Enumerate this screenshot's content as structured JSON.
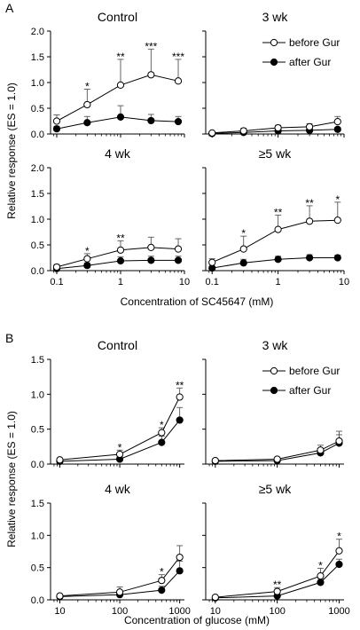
{
  "chart_data": [
    {
      "panel": "A",
      "type": "line",
      "ylabel": "Relative response (ES = 1.0)",
      "xlabel": "Concentration of SC45647 (mM)",
      "xscale": "log",
      "ylim": [
        0,
        2.0
      ],
      "yticks": [
        "0.0",
        "0.5",
        "1.0",
        "1.5",
        "2.0"
      ],
      "xticks": [
        "0.1",
        "1",
        "10"
      ],
      "legend": [
        "before Gur",
        "after Gur"
      ],
      "subplots": [
        {
          "title": "Control",
          "series": [
            {
              "name": "before Gur",
              "x": [
                0.1,
                0.3,
                1,
                3,
                8
              ],
              "y": [
                0.25,
                0.57,
                0.95,
                1.15,
                1.03
              ],
              "err": [
                0.12,
                0.3,
                0.5,
                0.5,
                0.42
              ]
            },
            {
              "name": "after Gur",
              "x": [
                0.1,
                0.3,
                1,
                3,
                8
              ],
              "y": [
                0.1,
                0.22,
                0.33,
                0.26,
                0.24
              ],
              "err": [
                0.05,
                0.12,
                0.22,
                0.12,
                0.1
              ]
            }
          ],
          "annotations": [
            {
              "x": 0.3,
              "text": "*"
            },
            {
              "x": 1,
              "text": "**"
            },
            {
              "x": 3,
              "text": "***"
            },
            {
              "x": 8,
              "text": "***"
            }
          ]
        },
        {
          "title": "3 wk",
          "series": [
            {
              "name": "before Gur",
              "x": [
                0.1,
                0.3,
                1,
                3,
                8
              ],
              "y": [
                0.02,
                0.06,
                0.12,
                0.14,
                0.24
              ],
              "err": [
                0.02,
                0.05,
                0.05,
                0.06,
                0.1
              ]
            },
            {
              "name": "after Gur",
              "x": [
                0.1,
                0.3,
                1,
                3,
                8
              ],
              "y": [
                0.01,
                0.03,
                0.06,
                0.07,
                0.09
              ],
              "err": [
                0.01,
                0.02,
                0.03,
                0.04,
                0.04
              ]
            }
          ],
          "annotations": []
        },
        {
          "title": "4 wk",
          "series": [
            {
              "name": "before Gur",
              "x": [
                0.1,
                0.3,
                1,
                3,
                8
              ],
              "y": [
                0.07,
                0.23,
                0.4,
                0.45,
                0.42
              ],
              "err": [
                0.05,
                0.1,
                0.18,
                0.2,
                0.2
              ]
            },
            {
              "name": "after Gur",
              "x": [
                0.1,
                0.3,
                1,
                3,
                8
              ],
              "y": [
                0.04,
                0.1,
                0.19,
                0.2,
                0.2
              ],
              "err": [
                0.03,
                0.05,
                0.08,
                0.08,
                0.08
              ]
            }
          ],
          "annotations": [
            {
              "x": 0.3,
              "text": "*"
            },
            {
              "x": 1,
              "text": "**"
            }
          ]
        },
        {
          "title": "≥5 wk",
          "series": [
            {
              "name": "before Gur",
              "x": [
                0.1,
                0.3,
                1,
                3,
                8
              ],
              "y": [
                0.16,
                0.42,
                0.8,
                0.96,
                0.98
              ],
              "err": [
                0.07,
                0.25,
                0.28,
                0.3,
                0.35
              ]
            },
            {
              "name": "after Gur",
              "x": [
                0.1,
                0.3,
                1,
                3,
                8
              ],
              "y": [
                0.05,
                0.15,
                0.22,
                0.25,
                0.25
              ],
              "err": [
                0.03,
                0.07,
                0.06,
                0.06,
                0.05
              ]
            }
          ],
          "annotations": [
            {
              "x": 0.3,
              "text": "*"
            },
            {
              "x": 1,
              "text": "**"
            },
            {
              "x": 3,
              "text": "**"
            },
            {
              "x": 8,
              "text": "*"
            }
          ]
        }
      ]
    },
    {
      "panel": "B",
      "type": "line",
      "ylabel": "Relative response (ES = 1.0)",
      "xlabel": "Concentration of glucose (mM)",
      "xscale": "log",
      "ylim": [
        0,
        1.5
      ],
      "yticks": [
        "0.0",
        "0.5",
        "1.0",
        "1.5"
      ],
      "xticks": [
        "10",
        "100",
        "1000"
      ],
      "legend": [
        "before Gur",
        "after Gur"
      ],
      "subplots": [
        {
          "title": "Control",
          "series": [
            {
              "name": "before Gur",
              "x": [
                10,
                100,
                500,
                1000
              ],
              "y": [
                0.06,
                0.14,
                0.45,
                0.96
              ],
              "err": [
                0.02,
                0.06,
                0.07,
                0.13
              ]
            },
            {
              "name": "after Gur",
              "x": [
                10,
                100,
                500,
                1000
              ],
              "y": [
                0.04,
                0.07,
                0.31,
                0.63
              ],
              "err": [
                0.02,
                0.04,
                0.09,
                0.18
              ]
            }
          ],
          "annotations": [
            {
              "x": 100,
              "text": "*"
            },
            {
              "x": 500,
              "text": "*"
            },
            {
              "x": 1000,
              "text": "**"
            }
          ]
        },
        {
          "title": "3 wk",
          "series": [
            {
              "name": "before Gur",
              "x": [
                10,
                100,
                500,
                1000
              ],
              "y": [
                0.05,
                0.07,
                0.2,
                0.33
              ],
              "err": [
                0.02,
                0.03,
                0.07,
                0.14
              ]
            },
            {
              "name": "after Gur",
              "x": [
                10,
                100,
                500,
                1000
              ],
              "y": [
                0.04,
                0.05,
                0.16,
                0.3
              ],
              "err": [
                0.02,
                0.03,
                0.06,
                0.12
              ]
            }
          ],
          "annotations": []
        },
        {
          "title": "4 wk",
          "series": [
            {
              "name": "before Gur",
              "x": [
                10,
                100,
                500,
                1000
              ],
              "y": [
                0.06,
                0.12,
                0.3,
                0.66
              ],
              "err": [
                0.02,
                0.08,
                0.09,
                0.18
              ]
            },
            {
              "name": "after Gur",
              "x": [
                10,
                100,
                500,
                1000
              ],
              "y": [
                0.05,
                0.08,
                0.15,
                0.45
              ],
              "err": [
                0.02,
                0.04,
                0.06,
                0.15
              ]
            }
          ],
          "annotations": [
            {
              "x": 500,
              "text": "*"
            }
          ]
        },
        {
          "title": "≥5 wk",
          "series": [
            {
              "name": "before Gur",
              "x": [
                10,
                100,
                500,
                1000
              ],
              "y": [
                0.04,
                0.13,
                0.37,
                0.76
              ],
              "err": [
                0.03,
                0.06,
                0.12,
                0.18
              ]
            },
            {
              "name": "after Gur",
              "x": [
                10,
                100,
                500,
                1000
              ],
              "y": [
                0.03,
                0.06,
                0.27,
                0.55
              ],
              "err": [
                0.02,
                0.04,
                0.06,
                0.08
              ]
            }
          ],
          "annotations": [
            {
              "x": 100,
              "text": "**"
            },
            {
              "x": 500,
              "text": "*"
            },
            {
              "x": 1000,
              "text": "*"
            }
          ]
        }
      ]
    }
  ]
}
